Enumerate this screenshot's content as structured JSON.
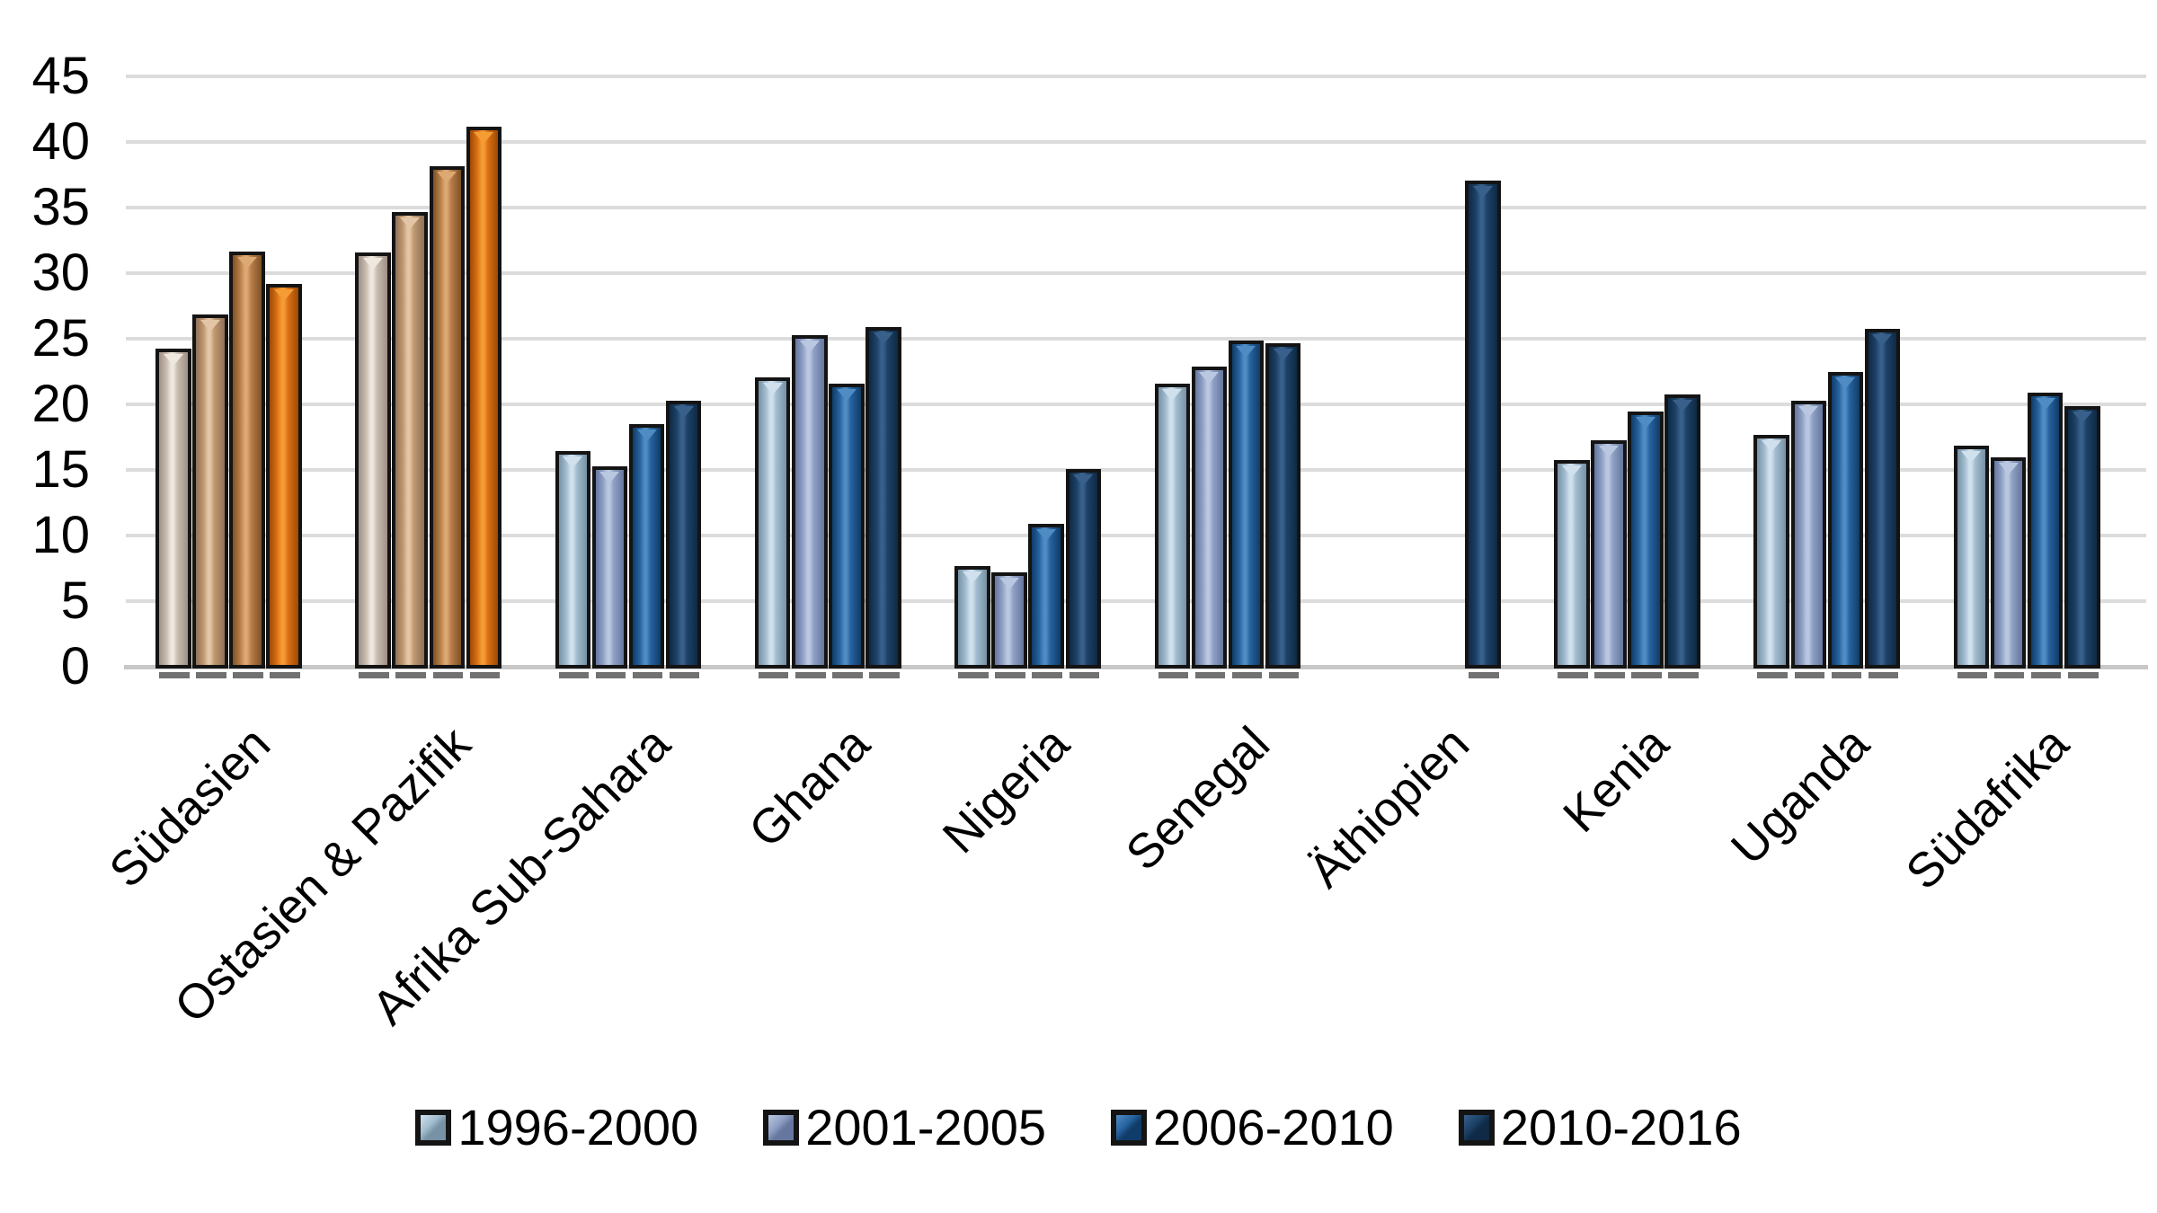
{
  "chart_data": {
    "type": "bar",
    "title": "",
    "xlabel": "",
    "ylabel": "",
    "categories": [
      "Südasien",
      "Ostasien & Pazifik",
      "Afrika Sub-Sahara",
      "Ghana",
      "Nigeria",
      "Senegal",
      "Äthiopien",
      "Kenia",
      "Uganda",
      "Südafrika"
    ],
    "series": [
      {
        "name": "1996-2000",
        "values": [
          24.4,
          31.7,
          16.6,
          22.2,
          7.8,
          21.7,
          null,
          15.9,
          17.8,
          17.0
        ]
      },
      {
        "name": "2001-2005",
        "values": [
          27.0,
          34.8,
          15.4,
          25.4,
          7.3,
          23.0,
          null,
          17.4,
          20.4,
          16.1
        ]
      },
      {
        "name": "2006-2010",
        "values": [
          31.8,
          38.3,
          18.6,
          21.7,
          11.0,
          25.0,
          null,
          19.6,
          22.6,
          21.0
        ]
      },
      {
        "name": "2010-2016",
        "values": [
          29.3,
          41.3,
          20.4,
          26.0,
          15.2,
          24.8,
          37.2,
          20.9,
          25.9,
          20.0
        ]
      }
    ],
    "ylim": [
      0,
      45
    ],
    "ytick_step": 5,
    "yticks": [
      "0",
      "5",
      "10",
      "15",
      "20",
      "25",
      "30",
      "35",
      "40",
      "45"
    ],
    "grid": "horizontal",
    "legend_position": "bottom",
    "category_palette": [
      "tan-orange",
      "tan-orange",
      "blue",
      "blue",
      "blue",
      "blue",
      "blue",
      "blue",
      "blue",
      "blue"
    ],
    "colors": {
      "background": "#ffffff",
      "gridline": "#dcdcdc",
      "axis_line": "#c8c8c8",
      "bar_border": "#141414",
      "bar_shadow": "#585858",
      "text": "#000000",
      "palettes": {
        "tan-orange": [
          {
            "edge": "#9e9084",
            "mid": "#c9bcb1",
            "light": "#efe8df"
          },
          {
            "edge": "#8f7158",
            "mid": "#c0976f",
            "light": "#e3c6a6"
          },
          {
            "edge": "#7d5125",
            "mid": "#b87e49",
            "light": "#dca873"
          },
          {
            "edge": "#9c4a06",
            "mid": "#db7113",
            "light": "#f59c35"
          }
        ],
        "blue": [
          {
            "edge": "#7791a5",
            "mid": "#a2bccf",
            "light": "#d0e1ed"
          },
          {
            "edge": "#66779f",
            "mid": "#8fa0c4",
            "light": "#bac7e0"
          },
          {
            "edge": "#0f3c68",
            "mid": "#2763a0",
            "light": "#4f8cc3"
          },
          {
            "edge": "#0e2a46",
            "mid": "#1d4166",
            "light": "#38608b"
          }
        ]
      }
    }
  }
}
